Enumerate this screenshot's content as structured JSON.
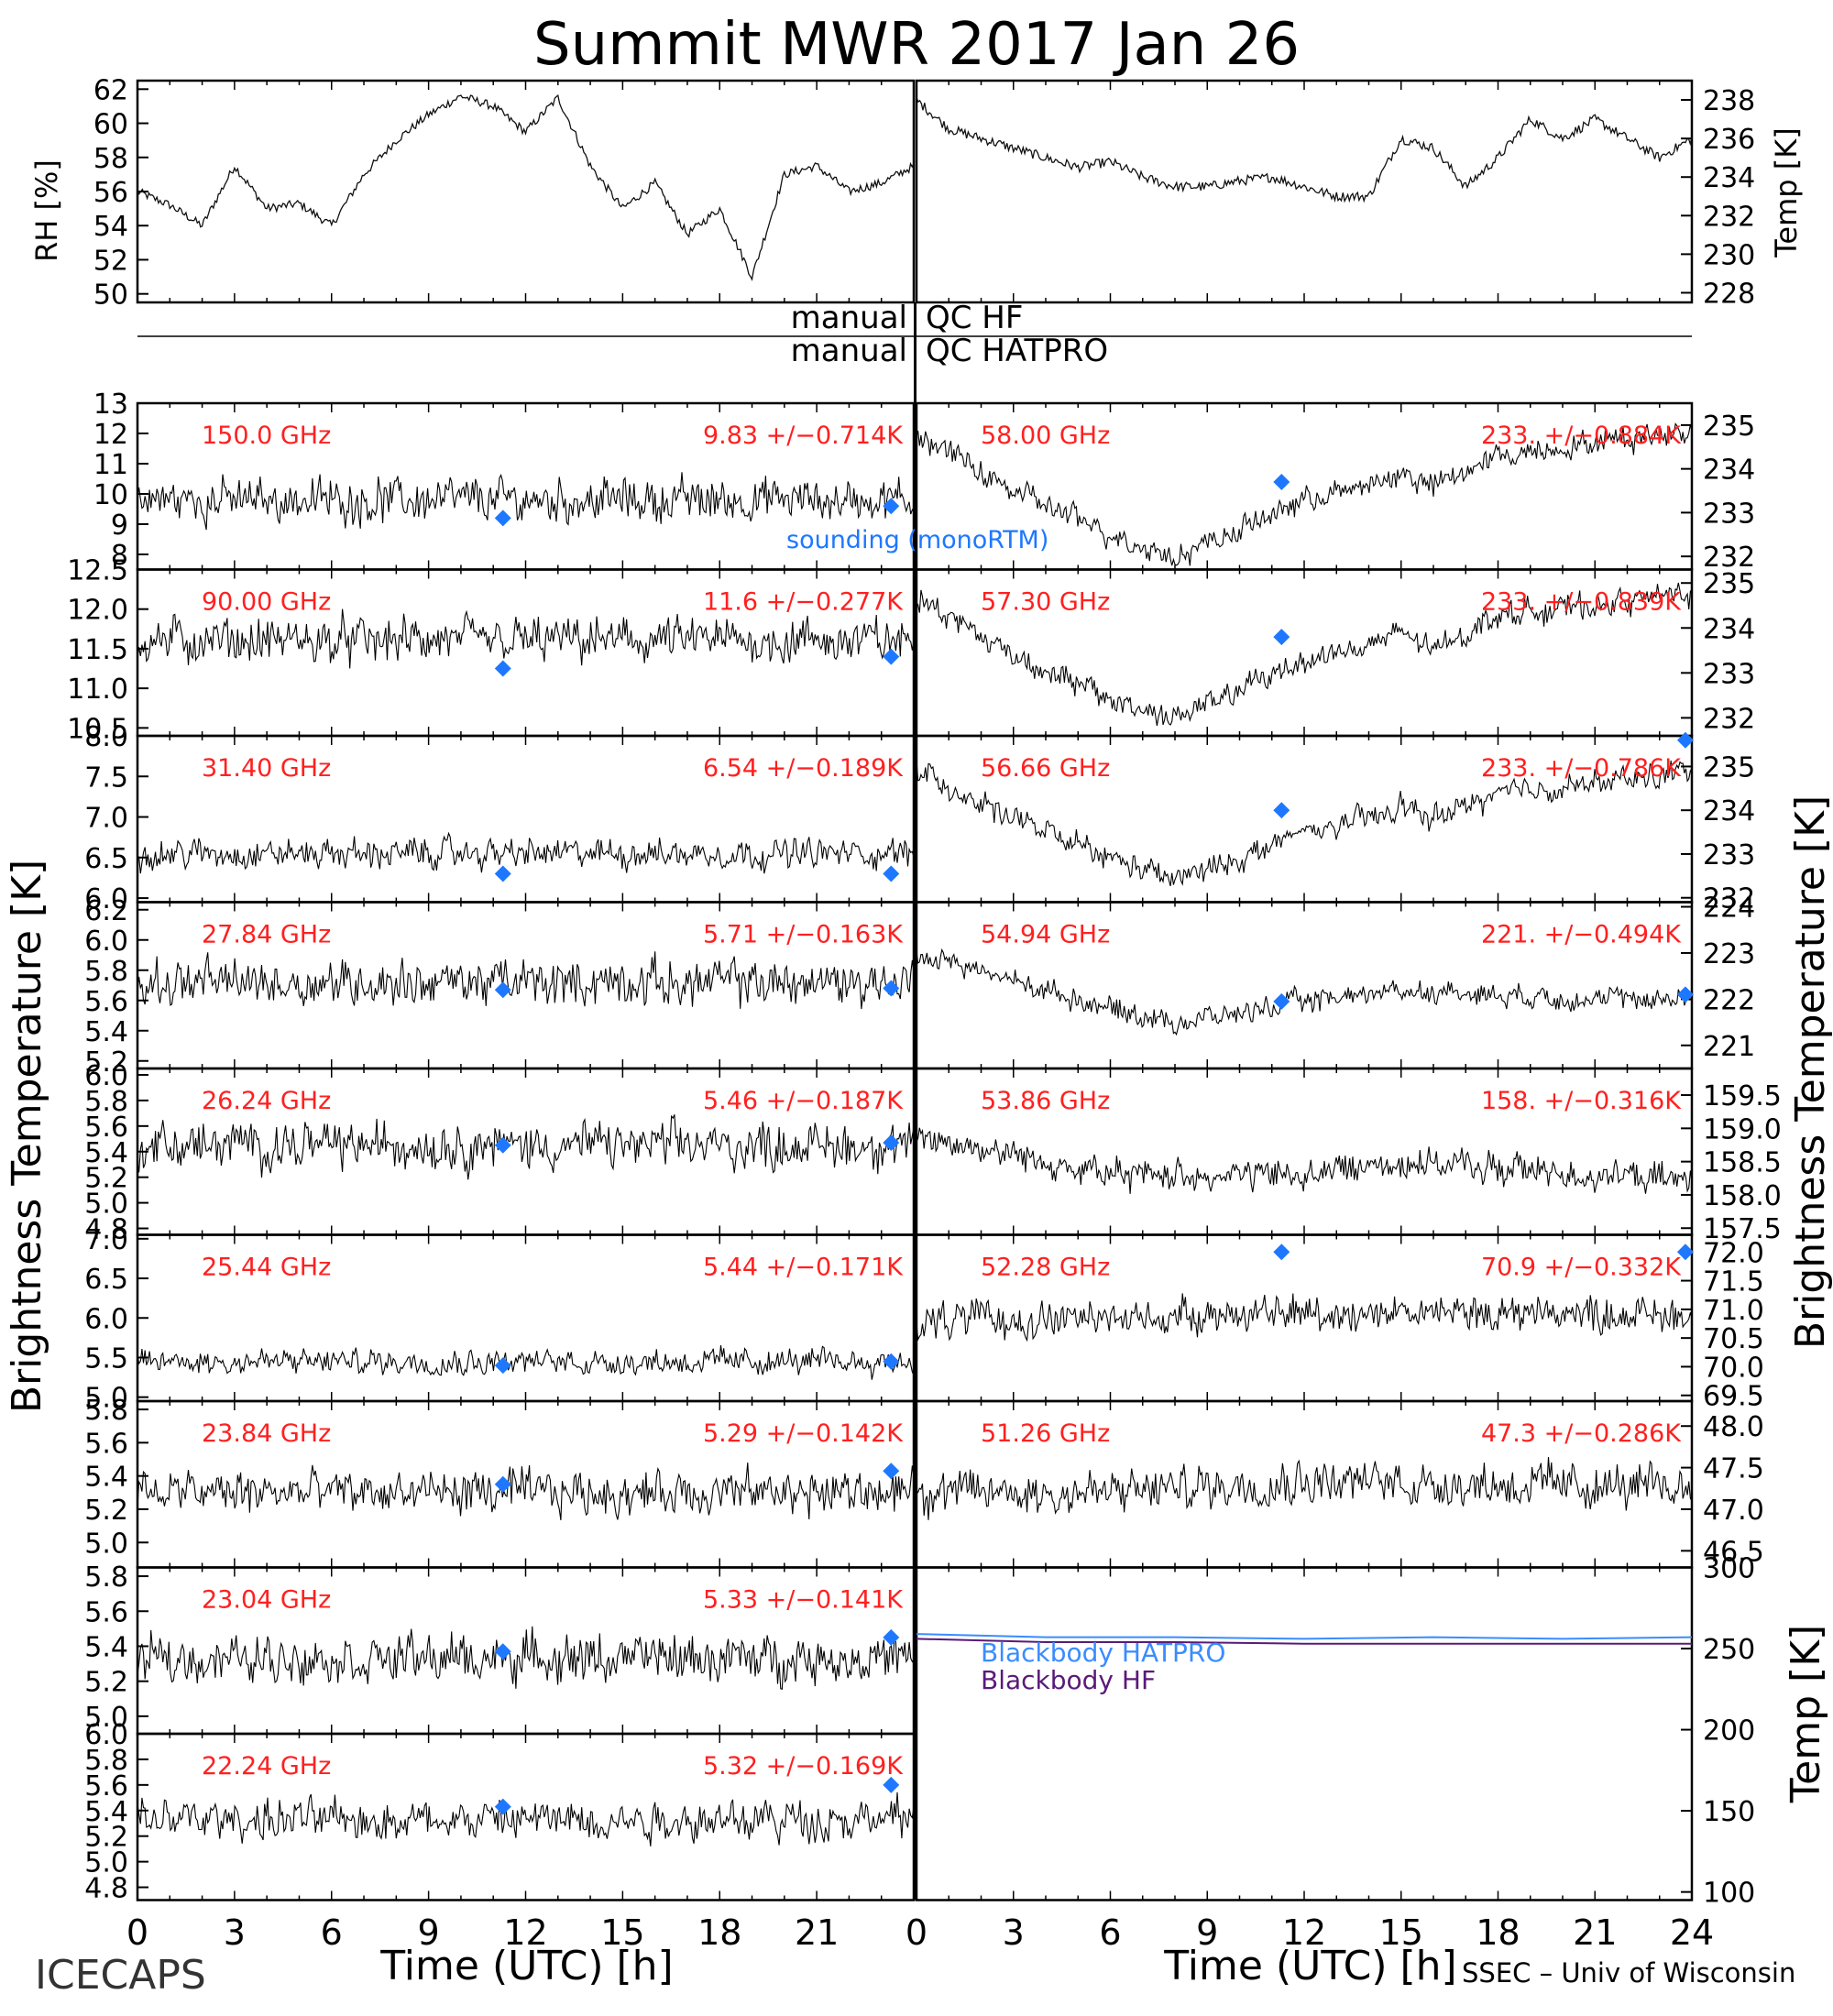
{
  "title": "Summit MWR 2017 Jan 26",
  "footer": {
    "left": "ICECAPS",
    "right": "SSEC – Univ of Wisconsin"
  },
  "colors": {
    "trace": "#000000",
    "stat": "#ff2020",
    "sounding": "#1e78ff",
    "bb_hatpro": "#3a8cff",
    "bb_hf": "#5a1a78",
    "axis": "#000000"
  },
  "qc": {
    "row1_left": "manual",
    "row1_right": "QC HF",
    "row2_left": "manual",
    "row2_right": "QC HATPRO"
  },
  "legend": {
    "sounding": "sounding (monoRTM)",
    "bb_hatpro": "Blackbody HATPRO",
    "bb_hf": "Blackbody HF"
  },
  "axes": {
    "rh_label": "RH [%]",
    "temp_label": "Temp [K]",
    "tb_label": "Brightness Temperature [K]",
    "bb_label": "Temp [K]",
    "x_label": "Time (UTC) [h]",
    "x_ticks_left": [
      "0",
      "3",
      "6",
      "9",
      "12",
      "15",
      "18",
      "21"
    ],
    "x_ticks_right": [
      "0",
      "3",
      "6",
      "9",
      "12",
      "15",
      "18",
      "21",
      "24"
    ]
  },
  "chart_data": {
    "type": "line",
    "x_range": [
      0,
      24
    ],
    "met": {
      "rh": {
        "ylim": [
          49.5,
          62.5
        ],
        "ticks": [
          "50",
          "52",
          "54",
          "56",
          "58",
          "60",
          "62"
        ],
        "tickvals": [
          50,
          52,
          54,
          56,
          58,
          60,
          62
        ],
        "x": [
          0,
          1,
          2,
          3,
          4,
          5,
          6,
          7,
          8,
          9,
          10,
          11,
          12,
          13,
          14,
          15,
          16,
          17,
          18,
          19,
          20,
          21,
          22,
          23,
          24
        ],
        "y": [
          56,
          55.2,
          54,
          57.5,
          55,
          55.3,
          54,
          57,
          59,
          60.5,
          61.6,
          61,
          59.5,
          61.5,
          57.5,
          55,
          56.5,
          53.5,
          55,
          51,
          57,
          57.5,
          56,
          56.5,
          57.5
        ]
      },
      "temp": {
        "ylim": [
          227.5,
          239
        ],
        "ticks": [
          "228",
          "230",
          "232",
          "234",
          "236",
          "238"
        ],
        "tickvals": [
          228,
          230,
          232,
          234,
          236,
          238
        ],
        "x": [
          0,
          1,
          2,
          3,
          4,
          5,
          6,
          7,
          8,
          9,
          10,
          11,
          12,
          13,
          14,
          15,
          16,
          17,
          18,
          19,
          20,
          21,
          22,
          23,
          24
        ],
        "y": [
          238,
          236.5,
          236,
          235.5,
          235,
          234.5,
          234.8,
          234,
          233.5,
          233.5,
          233.8,
          234,
          233.5,
          233,
          233,
          236,
          235.5,
          233.5,
          235,
          237,
          236,
          237,
          236,
          235,
          236
        ]
      }
    },
    "left_panels": [
      {
        "freq": "150.0 GHz",
        "stat": "9.83 +/−0.714K",
        "ylim": [
          7.5,
          13
        ],
        "ticks": [
          "8",
          "9",
          "10",
          "11",
          "12",
          "13"
        ],
        "tickvals": [
          8,
          9,
          10,
          11,
          12,
          13
        ],
        "mean": 9.8,
        "noise": 0.75,
        "sounding": [
          [
            11.3,
            9.2
          ],
          [
            23.3,
            9.6
          ]
        ],
        "trend": []
      },
      {
        "freq": "90.00 GHz",
        "stat": "11.6 +/−0.277K",
        "ylim": [
          10.4,
          12.5
        ],
        "ticks": [
          "10.5",
          "11.0",
          "11.5",
          "12.0",
          "12.5"
        ],
        "tickvals": [
          10.5,
          11.0,
          11.5,
          12.0,
          12.5
        ],
        "mean": 11.6,
        "noise": 0.3,
        "sounding": [
          [
            11.3,
            11.25
          ],
          [
            23.3,
            11.4
          ]
        ],
        "trend": []
      },
      {
        "freq": "31.40 GHz",
        "stat": "6.54 +/−0.189K",
        "ylim": [
          5.95,
          8.0
        ],
        "ticks": [
          "6.0",
          "6.5",
          "7.0",
          "7.5",
          "8.0"
        ],
        "tickvals": [
          6.0,
          6.5,
          7.0,
          7.5,
          8.0
        ],
        "mean": 6.55,
        "noise": 0.19,
        "sounding": [
          [
            11.3,
            6.3
          ],
          [
            23.3,
            6.3
          ]
        ],
        "trend": []
      },
      {
        "freq": "27.84 GHz",
        "stat": "5.71 +/−0.163K",
        "ylim": [
          5.15,
          6.25
        ],
        "ticks": [
          "5.2",
          "5.4",
          "5.6",
          "5.8",
          "6.0",
          "6.2"
        ],
        "tickvals": [
          5.2,
          5.4,
          5.6,
          5.8,
          6.0,
          6.2
        ],
        "mean": 5.72,
        "noise": 0.16,
        "sounding": [
          [
            11.3,
            5.67
          ],
          [
            23.3,
            5.68
          ]
        ],
        "trend": []
      },
      {
        "freq": "26.24 GHz",
        "stat": "5.46 +/−0.187K",
        "ylim": [
          4.75,
          6.05
        ],
        "ticks": [
          "4.8",
          "5.0",
          "5.2",
          "5.4",
          "5.6",
          "5.8",
          "6.0"
        ],
        "tickvals": [
          4.8,
          5.0,
          5.2,
          5.4,
          5.6,
          5.8,
          6.0
        ],
        "mean": 5.45,
        "noise": 0.19,
        "sounding": [
          [
            11.3,
            5.45
          ],
          [
            23.3,
            5.47
          ]
        ],
        "trend": []
      },
      {
        "freq": "25.44 GHz",
        "stat": "5.44 +/−0.171K",
        "ylim": [
          4.95,
          7.05
        ],
        "ticks": [
          "5.0",
          "5.5",
          "6.0",
          "6.5",
          "7.0"
        ],
        "tickvals": [
          5.0,
          5.5,
          6.0,
          6.5,
          7.0
        ],
        "mean": 5.45,
        "noise": 0.17,
        "sounding": [
          [
            11.3,
            5.4
          ],
          [
            23.3,
            5.45
          ]
        ],
        "trend": []
      },
      {
        "freq": "23.84 GHz",
        "stat": "5.29 +/−0.142K",
        "ylim": [
          4.85,
          5.85
        ],
        "ticks": [
          "5.0",
          "5.2",
          "5.4",
          "5.6",
          "5.8"
        ],
        "tickvals": [
          5.0,
          5.2,
          5.4,
          5.6,
          5.8
        ],
        "mean": 5.3,
        "noise": 0.14,
        "sounding": [
          [
            11.3,
            5.35
          ],
          [
            23.3,
            5.43
          ]
        ],
        "trend": []
      },
      {
        "freq": "23.04 GHz",
        "stat": "5.33 +/−0.141K",
        "ylim": [
          4.9,
          5.85
        ],
        "ticks": [
          "5.0",
          "5.2",
          "5.4",
          "5.6",
          "5.8"
        ],
        "tickvals": [
          5.0,
          5.2,
          5.4,
          5.6,
          5.8
        ],
        "mean": 5.33,
        "noise": 0.14,
        "sounding": [
          [
            11.3,
            5.37
          ],
          [
            23.3,
            5.45
          ]
        ],
        "trend": []
      },
      {
        "freq": "22.24 GHz",
        "stat": "5.32 +/−0.169K",
        "ylim": [
          4.7,
          6.0
        ],
        "ticks": [
          "4.8",
          "5.0",
          "5.2",
          "5.4",
          "5.6",
          "5.8",
          "6.0"
        ],
        "tickvals": [
          4.8,
          5.0,
          5.2,
          5.4,
          5.6,
          5.8,
          6.0
        ],
        "mean": 5.33,
        "noise": 0.17,
        "sounding": [
          [
            11.3,
            5.43
          ],
          [
            23.3,
            5.6
          ]
        ],
        "trend": []
      }
    ],
    "right_panels": [
      {
        "freq": "58.00 GHz",
        "stat": "233. +/−0.884K",
        "ylim": [
          231.7,
          235.5
        ],
        "ticks": [
          "232",
          "233",
          "234",
          "235"
        ],
        "tickvals": [
          232,
          233,
          234,
          235
        ],
        "noise": 0.3,
        "sounding": [
          [
            11.3,
            233.7
          ]
        ],
        "trend": [
          [
            0,
            234.8
          ],
          [
            3,
            233.5
          ],
          [
            6,
            232.5
          ],
          [
            8,
            232.0
          ],
          [
            10,
            232.6
          ],
          [
            12,
            233.3
          ],
          [
            14,
            233.6
          ],
          [
            15,
            233.9
          ],
          [
            16,
            233.6
          ],
          [
            18,
            234.3
          ],
          [
            21,
            234.6
          ],
          [
            24,
            234.9
          ]
        ]
      },
      {
        "freq": "57.30 GHz",
        "stat": "233. +/−0.839K",
        "ylim": [
          231.6,
          235.3
        ],
        "ticks": [
          "232",
          "233",
          "234",
          "235"
        ],
        "tickvals": [
          232,
          233,
          234,
          235
        ],
        "noise": 0.3,
        "sounding": [
          [
            11.3,
            233.8
          ]
        ],
        "trend": [
          [
            0,
            234.7
          ],
          [
            3,
            233.4
          ],
          [
            6,
            232.4
          ],
          [
            8,
            232.0
          ],
          [
            10,
            232.6
          ],
          [
            12,
            233.3
          ],
          [
            14,
            233.6
          ],
          [
            15,
            233.9
          ],
          [
            16,
            233.5
          ],
          [
            18,
            234.3
          ],
          [
            21,
            234.5
          ],
          [
            24,
            234.8
          ]
        ]
      },
      {
        "freq": "56.66 GHz",
        "stat": "233. +/−0.786K",
        "ylim": [
          231.9,
          235.7
        ],
        "ticks": [
          "232",
          "233",
          "234",
          "235"
        ],
        "tickvals": [
          232,
          233,
          234,
          235
        ],
        "noise": 0.3,
        "sounding": [
          [
            11.3,
            234.0
          ],
          [
            23.8,
            235.6
          ]
        ],
        "trend": [
          [
            0,
            234.9
          ],
          [
            3,
            233.8
          ],
          [
            6,
            232.9
          ],
          [
            8,
            232.4
          ],
          [
            10,
            232.9
          ],
          [
            12,
            233.5
          ],
          [
            14,
            233.8
          ],
          [
            15,
            234.1
          ],
          [
            16,
            233.8
          ],
          [
            18,
            234.4
          ],
          [
            21,
            234.6
          ],
          [
            24,
            234.9
          ]
        ]
      },
      {
        "freq": "54.94 GHz",
        "stat": "221. +/−0.494K",
        "ylim": [
          220.5,
          224.1
        ],
        "ticks": [
          "221",
          "222",
          "223",
          "224"
        ],
        "tickvals": [
          221,
          222,
          223,
          224
        ],
        "noise": 0.25,
        "sounding": [
          [
            11.3,
            221.95
          ],
          [
            23.8,
            222.1
          ]
        ],
        "trend": [
          [
            0,
            223.0
          ],
          [
            3,
            222.4
          ],
          [
            6,
            221.8
          ],
          [
            8,
            221.5
          ],
          [
            10,
            221.7
          ],
          [
            12,
            221.95
          ],
          [
            15,
            222.2
          ],
          [
            18,
            222.1
          ],
          [
            21,
            222.0
          ],
          [
            24,
            222.0
          ]
        ]
      },
      {
        "freq": "53.86 GHz",
        "stat": "158. +/−0.316K",
        "ylim": [
          157.4,
          159.9
        ],
        "ticks": [
          "157.5",
          "158.0",
          "158.5",
          "159.0",
          "159.5"
        ],
        "tickvals": [
          157.5,
          158.0,
          158.5,
          159.0,
          159.5
        ],
        "noise": 0.25,
        "sounding": [],
        "trend": [
          [
            0,
            158.9
          ],
          [
            3,
            158.6
          ],
          [
            6,
            158.3
          ],
          [
            9,
            158.3
          ],
          [
            12,
            158.3
          ],
          [
            15,
            158.5
          ],
          [
            18,
            158.4
          ],
          [
            21,
            158.3
          ],
          [
            24,
            158.2
          ]
        ]
      },
      {
        "freq": "52.28 GHz",
        "stat": "70.9 +/−0.332K",
        "ylim": [
          69.4,
          72.3
        ],
        "ticks": [
          "69.5",
          "70.0",
          "70.5",
          "71.0",
          "71.5",
          "72.0"
        ],
        "tickvals": [
          69.5,
          70.0,
          70.5,
          71.0,
          71.5,
          72.0
        ],
        "noise": 0.33,
        "sounding": [
          [
            11.3,
            72.0
          ],
          [
            23.8,
            72.0
          ]
        ],
        "trend": [
          [
            0,
            70.8
          ],
          [
            6,
            70.85
          ],
          [
            12,
            70.95
          ],
          [
            18,
            70.95
          ],
          [
            24,
            70.9
          ]
        ]
      },
      {
        "freq": "51.26 GHz",
        "stat": "47.3 +/−0.286K",
        "ylim": [
          46.3,
          48.3
        ],
        "ticks": [
          "46.5",
          "47.0",
          "47.5",
          "48.0"
        ],
        "tickvals": [
          46.5,
          47.0,
          47.5,
          48.0
        ],
        "noise": 0.28,
        "sounding": [],
        "trend": [
          [
            0,
            47.2
          ],
          [
            6,
            47.2
          ],
          [
            12,
            47.35
          ],
          [
            18,
            47.3
          ],
          [
            24,
            47.25
          ]
        ]
      }
    ],
    "blackbody": {
      "ylim": [
        95,
        300
      ],
      "ticks": [
        "100",
        "150",
        "200",
        "250",
        "300"
      ],
      "tickvals": [
        100,
        150,
        200,
        250,
        300
      ],
      "series": [
        {
          "name": "Blackbody HATPRO",
          "x": [
            0,
            4,
            8,
            12,
            16,
            20,
            24
          ],
          "y": [
            259,
            257,
            257,
            256,
            257,
            256,
            257
          ]
        },
        {
          "name": "Blackbody HF",
          "x": [
            0,
            4,
            8,
            12,
            16,
            20,
            24
          ],
          "y": [
            256,
            254,
            254,
            253,
            253,
            253,
            253
          ]
        }
      ]
    }
  }
}
